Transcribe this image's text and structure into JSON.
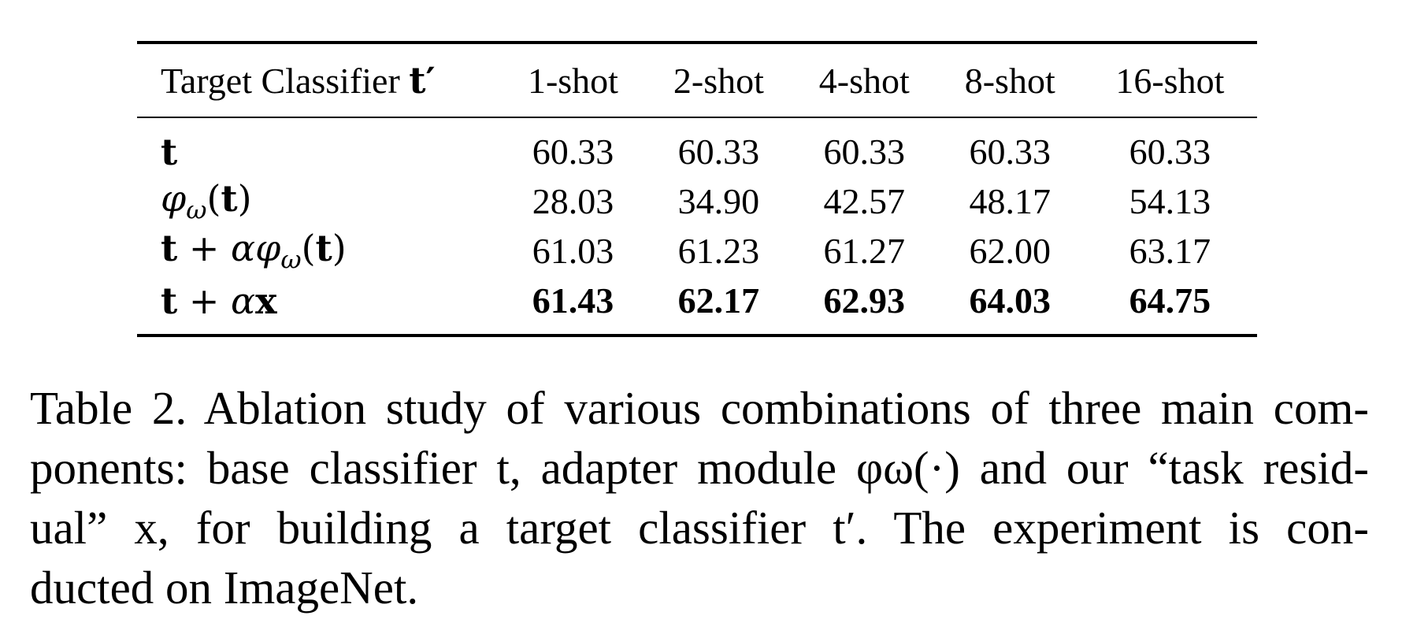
{
  "table": {
    "header": {
      "label_text": "Target Classifier",
      "label_symbol": "t′",
      "columns": [
        "1-shot",
        "2-shot",
        "4-shot",
        "8-shot",
        "16-shot"
      ]
    },
    "rows": [
      {
        "label_parts": [
          "t"
        ],
        "values": [
          "60.33",
          "60.33",
          "60.33",
          "60.33",
          "60.33"
        ],
        "bold": false
      },
      {
        "label_parts": [
          "φ",
          "ω",
          "(",
          "t",
          ")"
        ],
        "values": [
          "28.03",
          "34.90",
          "42.57",
          "48.17",
          "54.13"
        ],
        "bold": false
      },
      {
        "label_parts": [
          "t",
          " + ",
          "α",
          "φ",
          "ω",
          "(",
          "t",
          ")"
        ],
        "values": [
          "61.03",
          "61.23",
          "61.27",
          "62.00",
          "63.17"
        ],
        "bold": false
      },
      {
        "label_parts": [
          "t",
          " + ",
          "α",
          "x"
        ],
        "values": [
          "61.43",
          "62.17",
          "62.93",
          "64.03",
          "64.75"
        ],
        "bold": true
      }
    ]
  },
  "caption": {
    "lines": [
      "Table 2. Ablation study of various combinations of three main com-",
      "ponents: base classifier t, adapter module φω(·) and our “task resid-",
      "ual” x, for building a target classifier t′.  The experiment is con-",
      "ducted on ImageNet."
    ]
  }
}
